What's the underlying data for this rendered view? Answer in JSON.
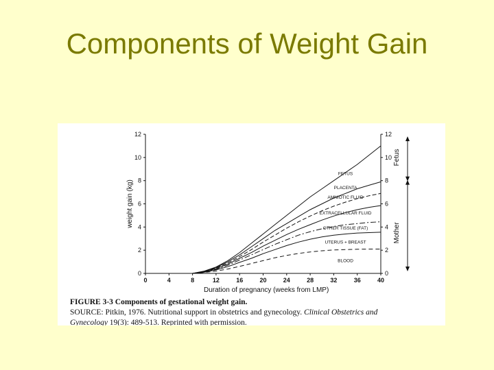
{
  "slide": {
    "title": "Components of Weight Gain"
  },
  "figure": {
    "caption_title": "FIGURE 3-3 Components of gestational weight gain.",
    "caption_source_prefix": "SOURCE: Pitkin, 1976. Nutritional support in obstetrics and gynecology.",
    "caption_journal_part1": "Clinical Obstetrics and",
    "caption_journal_part2": "Gynecology",
    "caption_source_suffix": "19(3): 489-513. Reprinted with permission."
  },
  "chart_data": {
    "type": "line",
    "xlabel": "Duration of pregnancy (weeks from LMP)",
    "ylabel": "weight gain (kg)",
    "xlim": [
      0,
      40
    ],
    "ylim": [
      0,
      12
    ],
    "xticks": [
      0,
      4,
      8,
      12,
      16,
      20,
      24,
      28,
      32,
      36,
      40
    ],
    "yticks": [
      0,
      2,
      4,
      6,
      8,
      10,
      12
    ],
    "right_axis_ticks": [
      0,
      2,
      4,
      6,
      8,
      10,
      12
    ],
    "right_axis_labels": {
      "mother": "Mother",
      "fetus": "Fetus"
    },
    "series": [
      {
        "name": "FETUS",
        "x": [
          8,
          10,
          12,
          14,
          16,
          18,
          20,
          22,
          24,
          26,
          28,
          30,
          32,
          34,
          36,
          38,
          40
        ],
        "y": [
          0,
          0.2,
          0.55,
          1.1,
          1.8,
          2.6,
          3.4,
          4.2,
          5.0,
          5.8,
          6.6,
          7.3,
          8.0,
          8.7,
          9.4,
          10.2,
          11.0
        ],
        "dash": "solid"
      },
      {
        "name": "PLACENTA",
        "x": [
          8,
          10,
          12,
          14,
          16,
          18,
          20,
          22,
          24,
          26,
          28,
          30,
          32,
          34,
          36,
          38,
          40
        ],
        "y": [
          0,
          0.18,
          0.5,
          1.0,
          1.6,
          2.3,
          3.0,
          3.7,
          4.3,
          4.9,
          5.5,
          6.0,
          6.5,
          6.9,
          7.3,
          7.6,
          7.9
        ],
        "dash": "solid"
      },
      {
        "name": "AMNIOTIC FLUID",
        "x": [
          8,
          10,
          12,
          14,
          16,
          18,
          20,
          22,
          24,
          26,
          28,
          30,
          32,
          34,
          36,
          38,
          40
        ],
        "y": [
          0,
          0.16,
          0.45,
          0.9,
          1.45,
          2.05,
          2.7,
          3.3,
          3.9,
          4.45,
          4.95,
          5.4,
          5.8,
          6.15,
          6.45,
          6.7,
          6.9
        ],
        "dash": "6,3"
      },
      {
        "name": "EXTRACELLULAR FLUID",
        "x": [
          8,
          10,
          12,
          14,
          16,
          18,
          20,
          22,
          24,
          26,
          28,
          30,
          32,
          34,
          36,
          38,
          40
        ],
        "y": [
          0,
          0.14,
          0.4,
          0.8,
          1.3,
          1.8,
          2.35,
          2.85,
          3.35,
          3.8,
          4.2,
          4.6,
          4.95,
          5.25,
          5.5,
          5.7,
          5.85
        ],
        "dash": "solid"
      },
      {
        "name": "OTHER TISSUE (FAT)",
        "x": [
          8,
          10,
          12,
          14,
          16,
          18,
          20,
          22,
          24,
          26,
          28,
          30,
          32,
          34,
          36,
          38,
          40
        ],
        "y": [
          0,
          0.12,
          0.35,
          0.7,
          1.15,
          1.6,
          2.05,
          2.5,
          2.9,
          3.3,
          3.6,
          3.85,
          4.05,
          4.2,
          4.3,
          4.4,
          4.45
        ],
        "dash": "8,3,2,3"
      },
      {
        "name": "UTERUS + BREAST",
        "x": [
          8,
          10,
          12,
          14,
          16,
          18,
          20,
          22,
          24,
          26,
          28,
          30,
          32,
          34,
          36,
          38,
          40
        ],
        "y": [
          0,
          0.1,
          0.3,
          0.58,
          0.95,
          1.3,
          1.7,
          2.05,
          2.4,
          2.7,
          2.95,
          3.15,
          3.3,
          3.4,
          3.48,
          3.52,
          3.55
        ],
        "dash": "solid"
      },
      {
        "name": "BLOOD",
        "x": [
          8,
          10,
          12,
          14,
          16,
          18,
          20,
          22,
          24,
          26,
          28,
          30,
          32,
          34,
          36,
          38,
          40
        ],
        "y": [
          0,
          0.08,
          0.2,
          0.38,
          0.6,
          0.85,
          1.1,
          1.35,
          1.55,
          1.72,
          1.85,
          1.95,
          2.02,
          2.05,
          2.08,
          2.1,
          2.1
        ],
        "dash": "6,4"
      }
    ],
    "label_y": {
      "FETUS": 8.6,
      "PLACENTA": 7.4,
      "AMNIOTIC FLUID": 6.55,
      "EXTRACELLULAR FLUID": 5.2,
      "OTHER TISSUE (FAT)": 3.9,
      "UTERUS + BREAST": 2.7,
      "BLOOD": 1.1
    }
  }
}
